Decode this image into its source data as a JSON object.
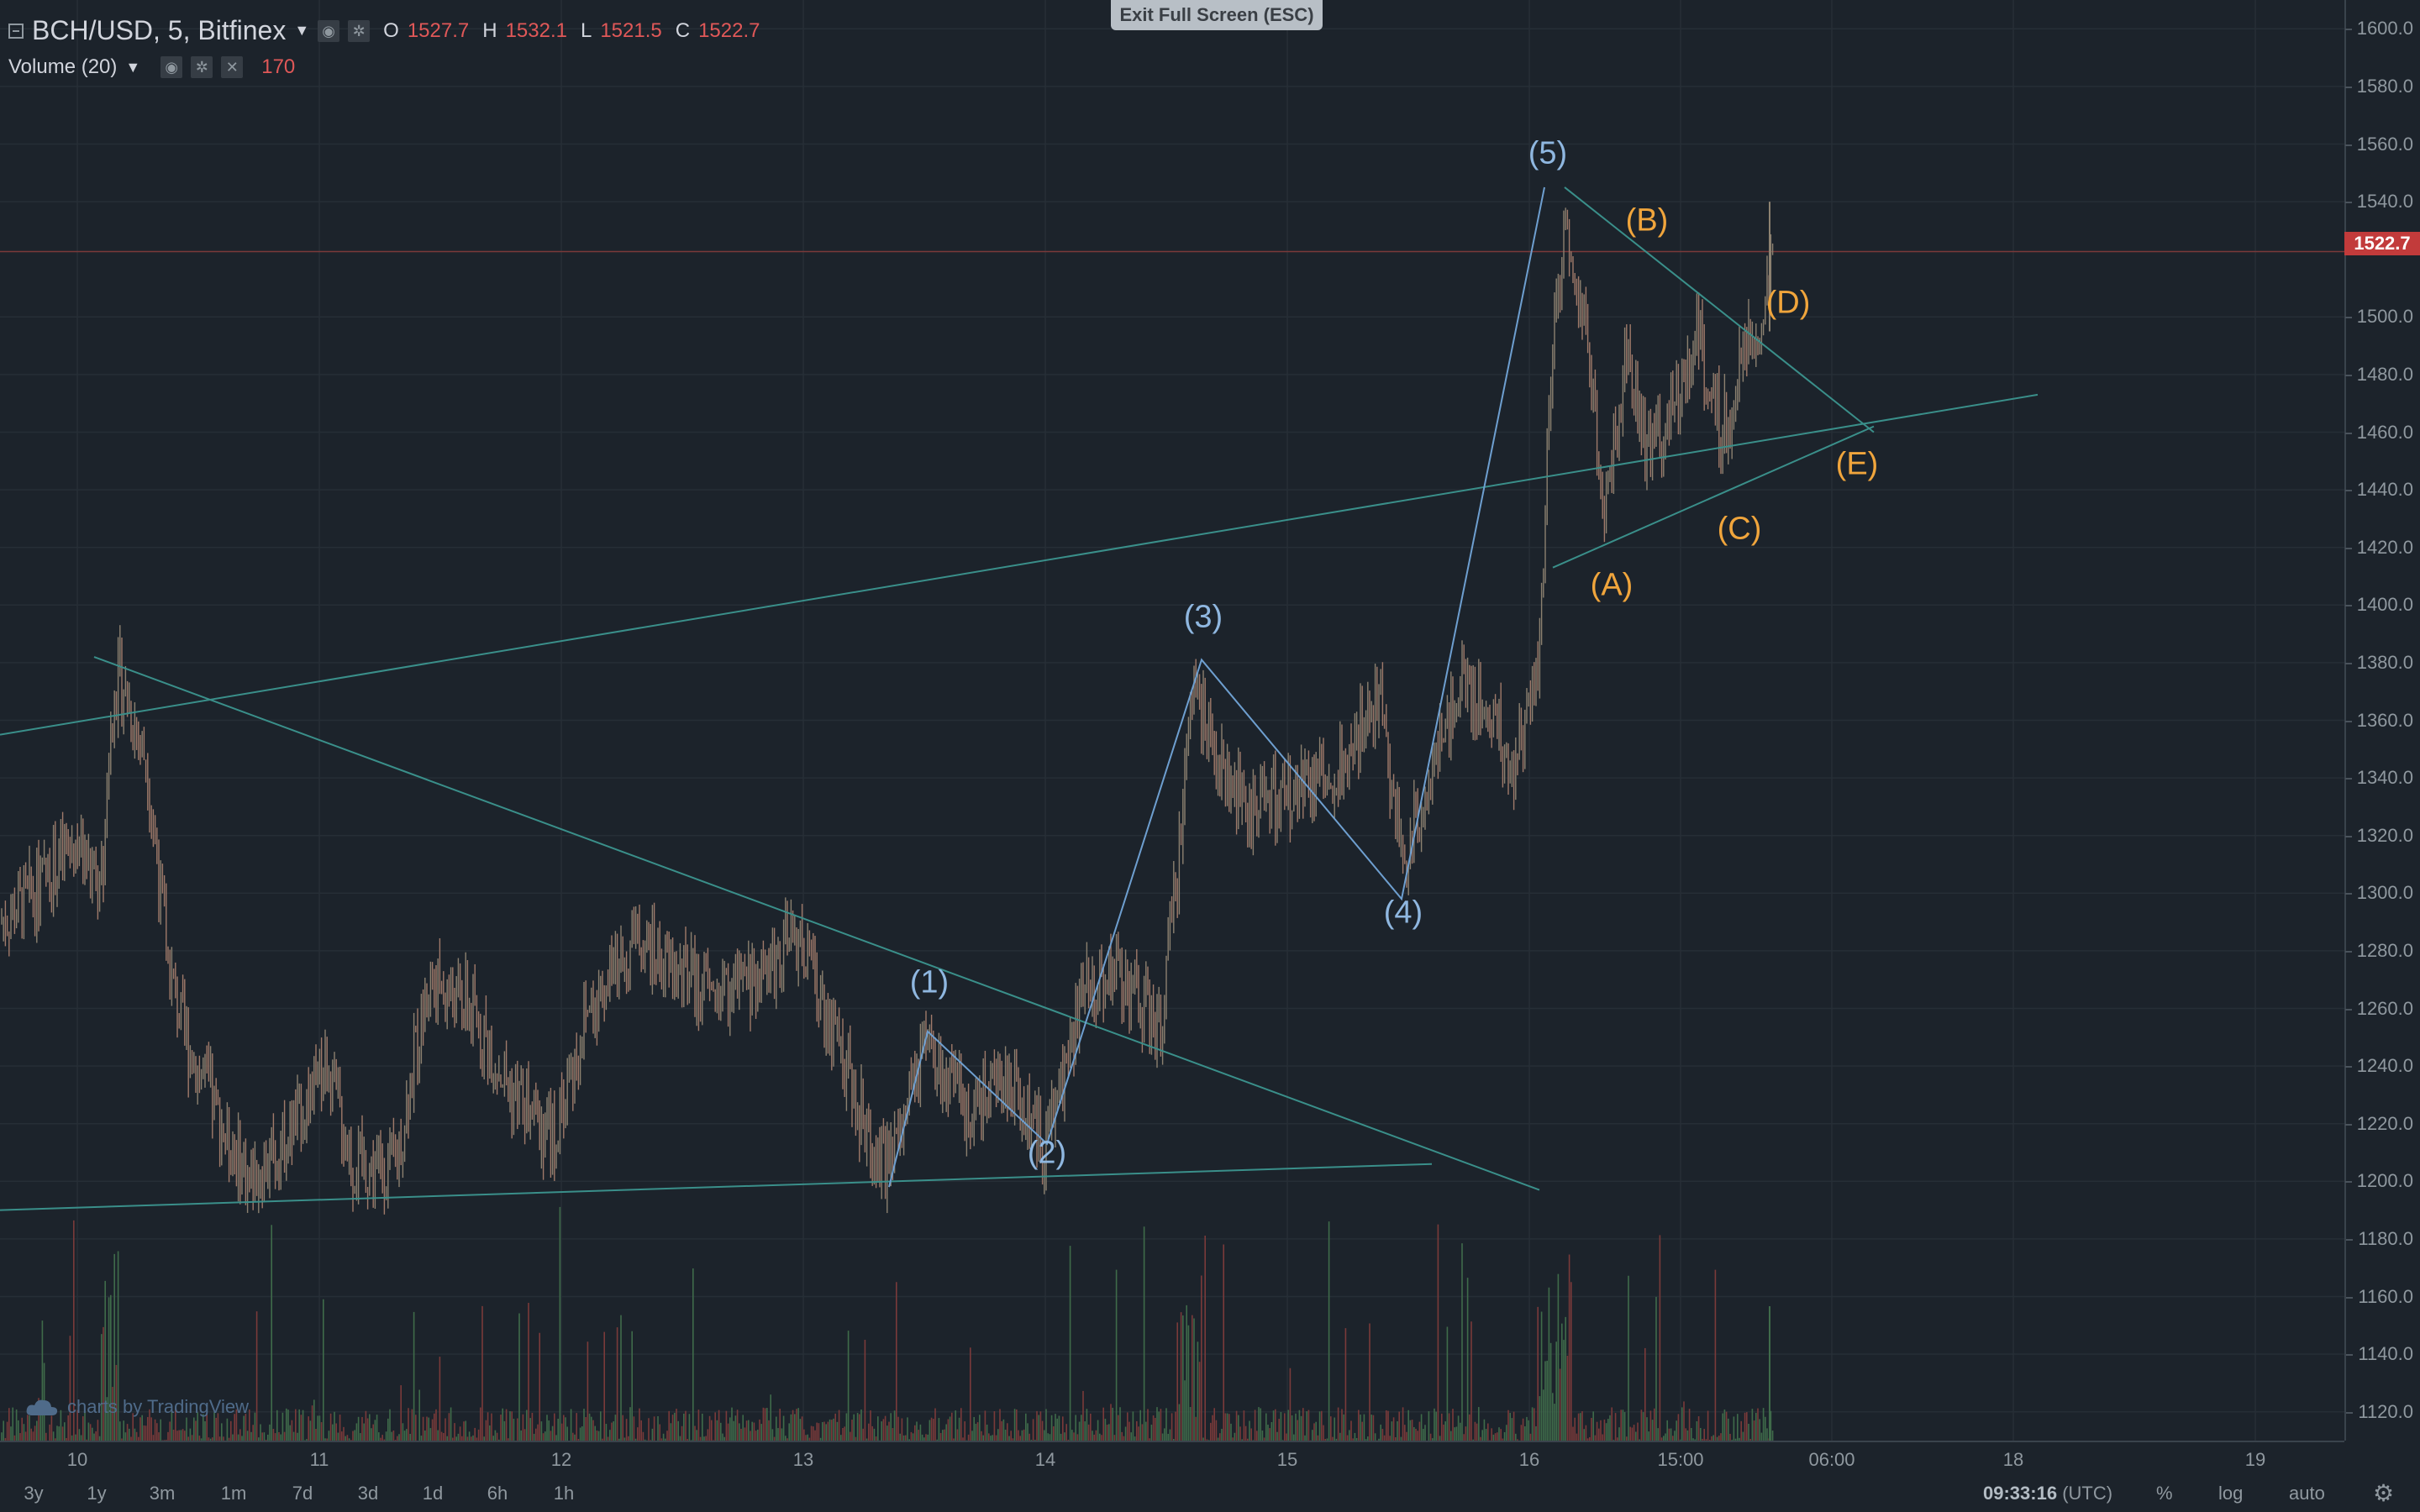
{
  "legend": {
    "symbol": "BCH/USD, 5, Bitfinex",
    "ohlc": [
      {
        "key": "O",
        "value": "1527.7"
      },
      {
        "key": "H",
        "value": "1532.1"
      },
      {
        "key": "L",
        "value": "1521.5"
      },
      {
        "key": "C",
        "value": "1522.7"
      }
    ],
    "volume_label": "Volume (20)",
    "volume_value": "170"
  },
  "exit_fullscreen": "Exit Full Screen (ESC)",
  "watermark": "charts by TradingView",
  "current_price": "1522.7",
  "price_axis": [
    "1600.0",
    "1580.0",
    "1560.0",
    "1540.0",
    "1500.0",
    "1480.0",
    "1460.0",
    "1440.0",
    "1420.0",
    "1400.0",
    "1380.0",
    "1360.0",
    "1340.0",
    "1320.0",
    "1300.0",
    "1280.0",
    "1260.0",
    "1240.0",
    "1220.0",
    "1200.0",
    "1180.0",
    "1160.0",
    "1140.0",
    "1120.0"
  ],
  "time_axis": [
    "10",
    "11",
    "12",
    "13",
    "14",
    "15",
    "16",
    "15:00",
    "06:00",
    "18",
    "19"
  ],
  "ranges": [
    "3y",
    "1y",
    "3m",
    "1m",
    "7d",
    "3d",
    "1d",
    "6h",
    "1h"
  ],
  "clock": {
    "time": "09:33:16",
    "zone": "(UTC)"
  },
  "axis_toggles": [
    "%",
    "log",
    "auto"
  ],
  "waves": {
    "impulse": [
      "(1)",
      "(2)",
      "(3)",
      "(4)",
      "(5)"
    ],
    "correction": [
      "(A)",
      "(B)",
      "(C)",
      "(D)",
      "(E)"
    ]
  },
  "colors": {
    "background": "#1c232b",
    "up_candle": "#8c8170",
    "down_candle": "#a07a6a",
    "volume_up": "#3f6b4a",
    "volume_down": "#7a3a3a",
    "trendline": "#3a8f8a",
    "wave_line": "#6e9fd0",
    "price_marker": "#c23b3b"
  },
  "chart_data": {
    "type": "candlestick",
    "interval": "5",
    "ylim": [
      1110,
      1610
    ],
    "x": [
      "10",
      "11",
      "12",
      "13",
      "14",
      "15",
      "16",
      "17"
    ],
    "close": [
      1300,
      1205,
      1250,
      1240,
      1270,
      1345,
      1500,
      1522.7
    ],
    "wave_points": [
      {
        "label": "(1)",
        "x": "13.5",
        "y": 1252
      },
      {
        "label": "(2)",
        "x": "14.0",
        "y": 1213
      },
      {
        "label": "(3)",
        "x": "14.6",
        "y": 1381
      },
      {
        "label": "(4)",
        "x": "15.5",
        "y": 1298
      },
      {
        "label": "(5)",
        "x": "16.1",
        "y": 1545
      }
    ],
    "correction_points": [
      {
        "label": "(A)",
        "y": 1422
      },
      {
        "label": "(B)",
        "y": 1528
      },
      {
        "label": "(C)",
        "y": 1450
      },
      {
        "label": "(D)",
        "y": 1502
      },
      {
        "label": "(E)",
        "y": 1460
      }
    ]
  }
}
